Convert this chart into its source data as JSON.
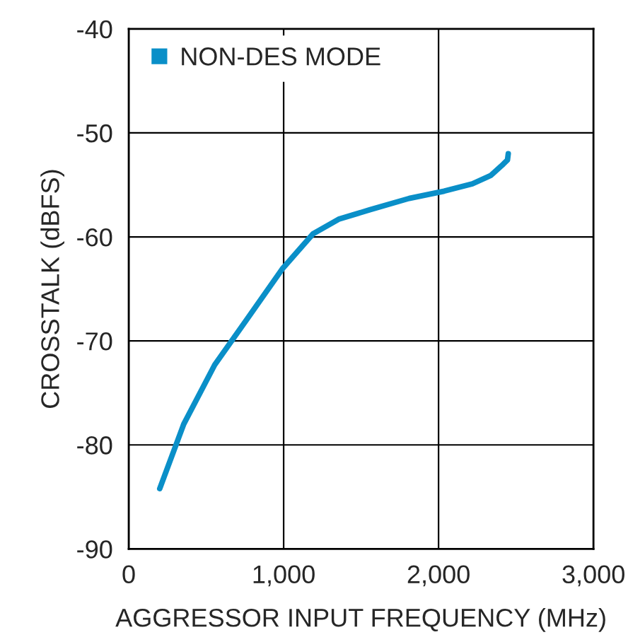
{
  "chart_data": {
    "type": "line",
    "xlabel": "AGGRESSOR INPUT FREQUENCY (MHz)",
    "ylabel": "CROSSTALK (dBFS)",
    "xlim": [
      0,
      3000
    ],
    "xticks": [
      0,
      {
        "value": 1000,
        "label": "1,000"
      },
      {
        "value": 2000,
        "label": "2,000"
      },
      {
        "value": 3000,
        "label": "3,000"
      }
    ],
    "ylim": [
      -90,
      -40
    ],
    "yticks": [
      -90,
      -80,
      -70,
      -60,
      -50,
      -40
    ],
    "grid": true,
    "legend": "top left",
    "marker": "none",
    "line_style": "solid",
    "series": [
      {
        "name": "NON-DES MODE",
        "color": "#0a8fc8",
        "x": [
          200,
          355,
          555,
          764,
          990,
          1190,
          1355,
          1555,
          1810,
          2036,
          2218,
          2336,
          2418,
          2445,
          2450
        ],
        "values": [
          -84.2,
          -78.0,
          -72.3,
          -67.9,
          -63.1,
          -59.7,
          -58.3,
          -57.4,
          -56.3,
          -55.6,
          -54.9,
          -54.1,
          -53.0,
          -52.6,
          -52.0
        ]
      }
    ]
  }
}
